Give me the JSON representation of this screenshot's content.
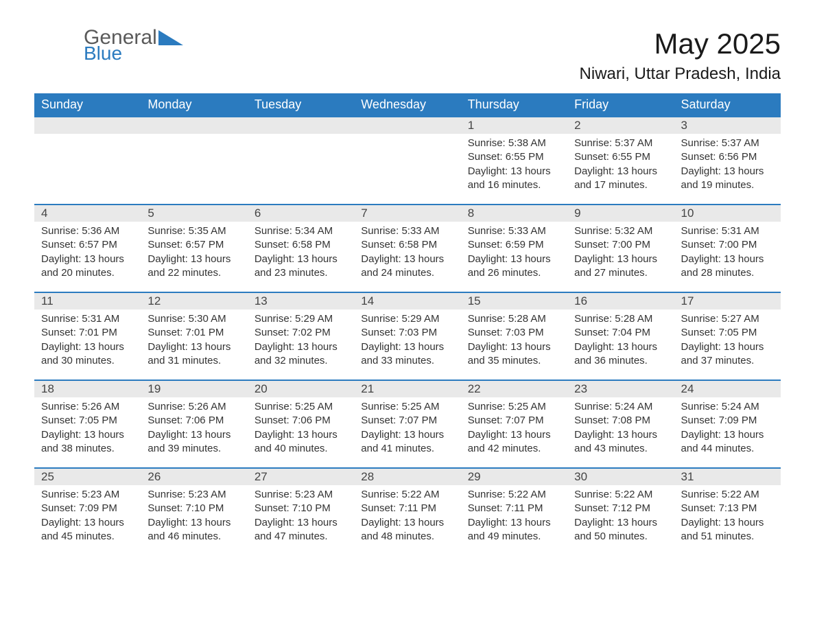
{
  "brand": {
    "general": "General",
    "blue": "Blue"
  },
  "title": "May 2025",
  "location": "Niwari, Uttar Pradesh, India",
  "colors": {
    "header_bg": "#2b7bbf",
    "header_text": "#ffffff",
    "daynum_bg": "#e9e9e9",
    "row_border": "#2b7bbf",
    "body_text": "#333333",
    "page_bg": "#ffffff"
  },
  "typography": {
    "title_fontsize": 42,
    "location_fontsize": 24,
    "weekday_fontsize": 18,
    "body_fontsize": 15,
    "font_family": "Arial"
  },
  "calendar": {
    "weekdays": [
      "Sunday",
      "Monday",
      "Tuesday",
      "Wednesday",
      "Thursday",
      "Friday",
      "Saturday"
    ],
    "weeks": [
      [
        null,
        null,
        null,
        null,
        {
          "day": "1",
          "sunrise": "Sunrise: 5:38 AM",
          "sunset": "Sunset: 6:55 PM",
          "daylight": "Daylight: 13 hours and 16 minutes."
        },
        {
          "day": "2",
          "sunrise": "Sunrise: 5:37 AM",
          "sunset": "Sunset: 6:55 PM",
          "daylight": "Daylight: 13 hours and 17 minutes."
        },
        {
          "day": "3",
          "sunrise": "Sunrise: 5:37 AM",
          "sunset": "Sunset: 6:56 PM",
          "daylight": "Daylight: 13 hours and 19 minutes."
        }
      ],
      [
        {
          "day": "4",
          "sunrise": "Sunrise: 5:36 AM",
          "sunset": "Sunset: 6:57 PM",
          "daylight": "Daylight: 13 hours and 20 minutes."
        },
        {
          "day": "5",
          "sunrise": "Sunrise: 5:35 AM",
          "sunset": "Sunset: 6:57 PM",
          "daylight": "Daylight: 13 hours and 22 minutes."
        },
        {
          "day": "6",
          "sunrise": "Sunrise: 5:34 AM",
          "sunset": "Sunset: 6:58 PM",
          "daylight": "Daylight: 13 hours and 23 minutes."
        },
        {
          "day": "7",
          "sunrise": "Sunrise: 5:33 AM",
          "sunset": "Sunset: 6:58 PM",
          "daylight": "Daylight: 13 hours and 24 minutes."
        },
        {
          "day": "8",
          "sunrise": "Sunrise: 5:33 AM",
          "sunset": "Sunset: 6:59 PM",
          "daylight": "Daylight: 13 hours and 26 minutes."
        },
        {
          "day": "9",
          "sunrise": "Sunrise: 5:32 AM",
          "sunset": "Sunset: 7:00 PM",
          "daylight": "Daylight: 13 hours and 27 minutes."
        },
        {
          "day": "10",
          "sunrise": "Sunrise: 5:31 AM",
          "sunset": "Sunset: 7:00 PM",
          "daylight": "Daylight: 13 hours and 28 minutes."
        }
      ],
      [
        {
          "day": "11",
          "sunrise": "Sunrise: 5:31 AM",
          "sunset": "Sunset: 7:01 PM",
          "daylight": "Daylight: 13 hours and 30 minutes."
        },
        {
          "day": "12",
          "sunrise": "Sunrise: 5:30 AM",
          "sunset": "Sunset: 7:01 PM",
          "daylight": "Daylight: 13 hours and 31 minutes."
        },
        {
          "day": "13",
          "sunrise": "Sunrise: 5:29 AM",
          "sunset": "Sunset: 7:02 PM",
          "daylight": "Daylight: 13 hours and 32 minutes."
        },
        {
          "day": "14",
          "sunrise": "Sunrise: 5:29 AM",
          "sunset": "Sunset: 7:03 PM",
          "daylight": "Daylight: 13 hours and 33 minutes."
        },
        {
          "day": "15",
          "sunrise": "Sunrise: 5:28 AM",
          "sunset": "Sunset: 7:03 PM",
          "daylight": "Daylight: 13 hours and 35 minutes."
        },
        {
          "day": "16",
          "sunrise": "Sunrise: 5:28 AM",
          "sunset": "Sunset: 7:04 PM",
          "daylight": "Daylight: 13 hours and 36 minutes."
        },
        {
          "day": "17",
          "sunrise": "Sunrise: 5:27 AM",
          "sunset": "Sunset: 7:05 PM",
          "daylight": "Daylight: 13 hours and 37 minutes."
        }
      ],
      [
        {
          "day": "18",
          "sunrise": "Sunrise: 5:26 AM",
          "sunset": "Sunset: 7:05 PM",
          "daylight": "Daylight: 13 hours and 38 minutes."
        },
        {
          "day": "19",
          "sunrise": "Sunrise: 5:26 AM",
          "sunset": "Sunset: 7:06 PM",
          "daylight": "Daylight: 13 hours and 39 minutes."
        },
        {
          "day": "20",
          "sunrise": "Sunrise: 5:25 AM",
          "sunset": "Sunset: 7:06 PM",
          "daylight": "Daylight: 13 hours and 40 minutes."
        },
        {
          "day": "21",
          "sunrise": "Sunrise: 5:25 AM",
          "sunset": "Sunset: 7:07 PM",
          "daylight": "Daylight: 13 hours and 41 minutes."
        },
        {
          "day": "22",
          "sunrise": "Sunrise: 5:25 AM",
          "sunset": "Sunset: 7:07 PM",
          "daylight": "Daylight: 13 hours and 42 minutes."
        },
        {
          "day": "23",
          "sunrise": "Sunrise: 5:24 AM",
          "sunset": "Sunset: 7:08 PM",
          "daylight": "Daylight: 13 hours and 43 minutes."
        },
        {
          "day": "24",
          "sunrise": "Sunrise: 5:24 AM",
          "sunset": "Sunset: 7:09 PM",
          "daylight": "Daylight: 13 hours and 44 minutes."
        }
      ],
      [
        {
          "day": "25",
          "sunrise": "Sunrise: 5:23 AM",
          "sunset": "Sunset: 7:09 PM",
          "daylight": "Daylight: 13 hours and 45 minutes."
        },
        {
          "day": "26",
          "sunrise": "Sunrise: 5:23 AM",
          "sunset": "Sunset: 7:10 PM",
          "daylight": "Daylight: 13 hours and 46 minutes."
        },
        {
          "day": "27",
          "sunrise": "Sunrise: 5:23 AM",
          "sunset": "Sunset: 7:10 PM",
          "daylight": "Daylight: 13 hours and 47 minutes."
        },
        {
          "day": "28",
          "sunrise": "Sunrise: 5:22 AM",
          "sunset": "Sunset: 7:11 PM",
          "daylight": "Daylight: 13 hours and 48 minutes."
        },
        {
          "day": "29",
          "sunrise": "Sunrise: 5:22 AM",
          "sunset": "Sunset: 7:11 PM",
          "daylight": "Daylight: 13 hours and 49 minutes."
        },
        {
          "day": "30",
          "sunrise": "Sunrise: 5:22 AM",
          "sunset": "Sunset: 7:12 PM",
          "daylight": "Daylight: 13 hours and 50 minutes."
        },
        {
          "day": "31",
          "sunrise": "Sunrise: 5:22 AM",
          "sunset": "Sunset: 7:13 PM",
          "daylight": "Daylight: 13 hours and 51 minutes."
        }
      ]
    ]
  }
}
